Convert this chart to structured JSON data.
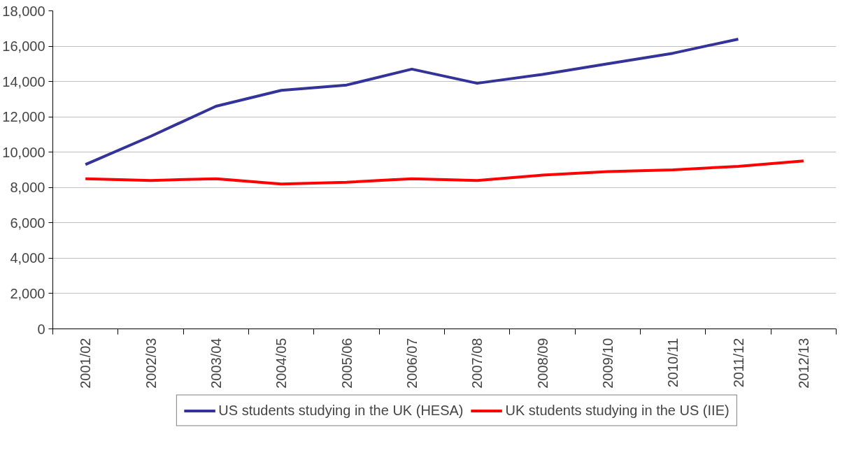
{
  "chart_data": {
    "type": "line",
    "categories": [
      "2001/02",
      "2002/03",
      "2003/04",
      "2004/05",
      "2005/06",
      "2006/07",
      "2007/08",
      "2008/09",
      "2009/10",
      "2010/11",
      "2011/12",
      "2012/13"
    ],
    "series": [
      {
        "name": "US students studying in the UK (HESA)",
        "color": "#333399",
        "values": [
          9300,
          10900,
          12600,
          13500,
          13800,
          14700,
          13900,
          14400,
          15000,
          15600,
          16400,
          null
        ]
      },
      {
        "name": "UK students studying in the US (IIE)",
        "color": "#ff0000",
        "values": [
          8500,
          8400,
          8500,
          8200,
          8300,
          8500,
          8400,
          8700,
          8900,
          9000,
          9200,
          9500
        ]
      }
    ],
    "ylim": [
      0,
      18000
    ],
    "yticks": [
      {
        "value": 0,
        "label": "0"
      },
      {
        "value": 2000,
        "label": "2,000"
      },
      {
        "value": 4000,
        "label": "4,000"
      },
      {
        "value": 6000,
        "label": "6,000"
      },
      {
        "value": 8000,
        "label": "8,000"
      },
      {
        "value": 10000,
        "label": "10,000"
      },
      {
        "value": 12000,
        "label": "12,000"
      },
      {
        "value": 14000,
        "label": "14,000"
      },
      {
        "value": 16000,
        "label": "16,000"
      },
      {
        "value": 18000,
        "label": "18,000"
      }
    ],
    "grid": "y",
    "legend": "bottom",
    "marker": "none",
    "line_style": "solid"
  }
}
